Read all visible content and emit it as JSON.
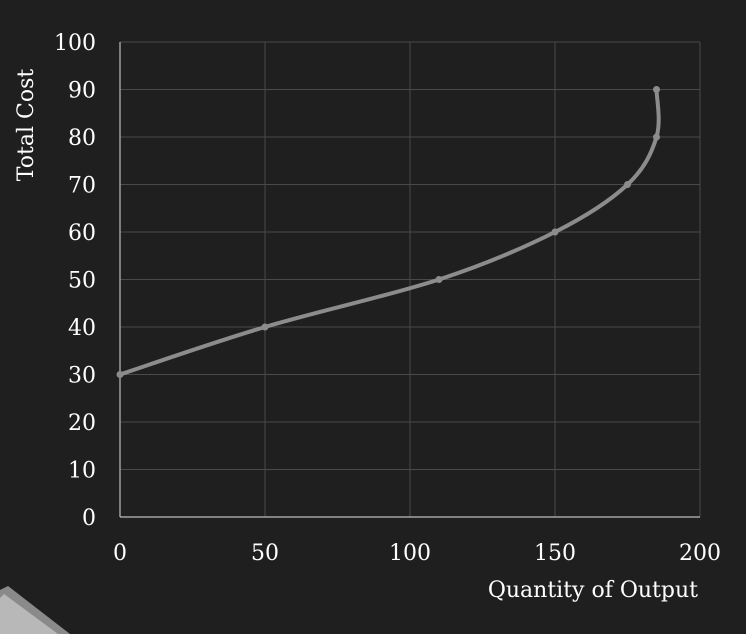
{
  "chart_data": {
    "type": "line",
    "title": "",
    "xlabel": "Quantity of Output",
    "ylabel": "Total Cost",
    "xlim": [
      0,
      200
    ],
    "ylim": [
      0,
      100
    ],
    "x_ticks": [
      0,
      50,
      100,
      150,
      200
    ],
    "y_ticks": [
      0,
      10,
      20,
      30,
      40,
      50,
      60,
      70,
      80,
      90,
      100
    ],
    "x_tick_labels": [
      "0",
      "50",
      "100",
      "150",
      "200"
    ],
    "y_tick_labels": [
      "0",
      "10",
      "20",
      "30",
      "40",
      "50",
      "60",
      "70",
      "80",
      "90",
      "100"
    ],
    "grid": true,
    "legend": "none",
    "series": [
      {
        "color": "#8c8c8c",
        "smooth": true,
        "points": [
          {
            "x": 0,
            "y": 30
          },
          {
            "x": 50,
            "y": 40
          },
          {
            "x": 110,
            "y": 50
          },
          {
            "x": 150,
            "y": 60
          },
          {
            "x": 175,
            "y": 70
          },
          {
            "x": 185,
            "y": 80
          },
          {
            "x": 185,
            "y": 90
          }
        ]
      }
    ]
  },
  "colors": {
    "background": "#1f1f1f",
    "grid": "#4a4a4a",
    "text": "#ffffff",
    "line": "#8c8c8c"
  }
}
